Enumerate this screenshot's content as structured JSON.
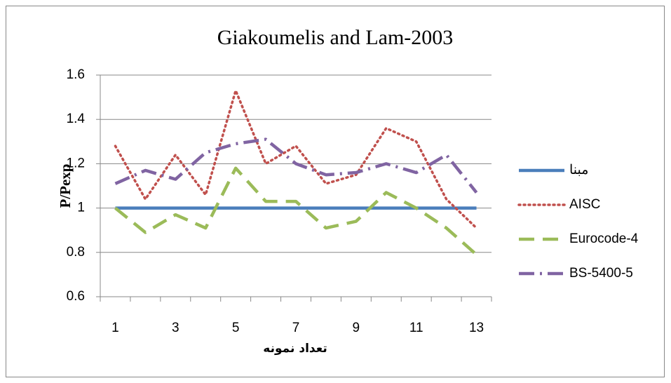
{
  "chart_data": {
    "type": "line",
    "title": "Giakoumelis and Lam-2003",
    "x_label": "تعداد نمونه",
    "y_label": "P/Pexp",
    "categories": [
      1,
      null,
      3,
      null,
      5,
      null,
      7,
      null,
      9,
      null,
      11,
      null,
      13
    ],
    "series": [
      {
        "name": "مبنا",
        "color": "#4a7ebb",
        "dash": "solid",
        "values": [
          1,
          1,
          1,
          1,
          1,
          1,
          1,
          1,
          1,
          1,
          1,
          1,
          1
        ]
      },
      {
        "name": "AISC",
        "color": "#c0504d",
        "dash": "dotted",
        "values": [
          1.28,
          1.04,
          1.24,
          1.06,
          1.53,
          1.2,
          1.28,
          1.11,
          1.15,
          1.36,
          1.3,
          1.04,
          0.91
        ]
      },
      {
        "name": "Eurocode-4",
        "color": "#9bbb59",
        "dash": "dashed",
        "values": [
          1.0,
          0.89,
          0.97,
          0.91,
          1.18,
          1.03,
          1.03,
          0.91,
          0.94,
          1.07,
          1.0,
          0.91,
          0.79
        ]
      },
      {
        "name": "BS-5400-5",
        "color": "#8064a2",
        "dash": "dashdot",
        "values": [
          1.11,
          1.17,
          1.13,
          1.25,
          1.29,
          1.31,
          1.2,
          1.15,
          1.16,
          1.2,
          1.16,
          1.24,
          1.07
        ]
      }
    ],
    "ylim": [
      0.6,
      1.6
    ],
    "yticks": [
      0.6,
      0.8,
      1,
      1.2,
      1.4,
      1.6
    ],
    "grid": true,
    "legend": "right"
  }
}
